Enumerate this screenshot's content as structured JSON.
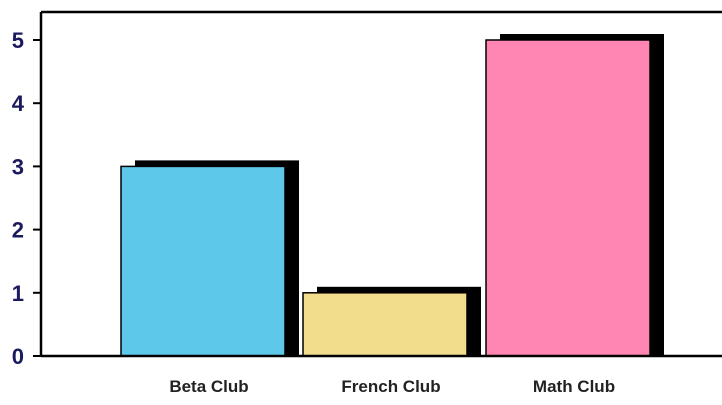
{
  "chart_data": {
    "type": "bar",
    "title": "",
    "xlabel": "",
    "ylabel": "",
    "categories": [
      "Beta Club",
      "French Club",
      "Math Club"
    ],
    "values": [
      3,
      1,
      5
    ],
    "colors": [
      "#5ec8ea",
      "#f2dd8c",
      "#ff85b3"
    ],
    "shadow_color": "#000000",
    "ylim": [
      0,
      5
    ],
    "yticks": [
      0,
      1,
      2,
      3,
      4,
      5
    ],
    "grid": false,
    "legend": "none"
  }
}
